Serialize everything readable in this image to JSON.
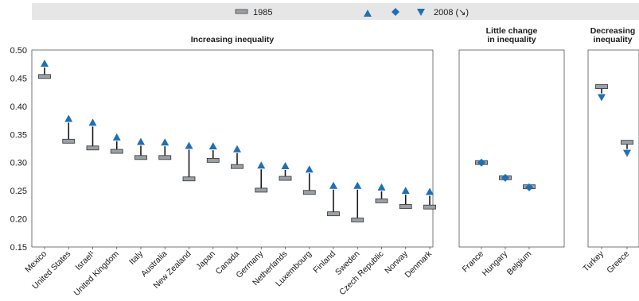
{
  "legend": {
    "label_1985": "1985",
    "label_2008": "2008 (↘)"
  },
  "chart_data": {
    "type": "scatter",
    "ylim": [
      0.15,
      0.5
    ],
    "yticks": [
      "0.50",
      "0.45",
      "0.40",
      "0.35",
      "0.30",
      "0.25",
      "0.20",
      "0.15"
    ],
    "colors": {
      "marker_2008": "#1f6fb5",
      "marker_1985": "#9aa0a6",
      "stem": "#1a1a1a",
      "legend_bg": "#e6e6e6"
    },
    "panels": [
      {
        "title": [
          "Increasing inequality"
        ],
        "categories": [
          "Mexico",
          "United States",
          "Israel¹",
          "United Kingdom",
          "Italy",
          "Australia",
          "New Zealand",
          "Japan",
          "Canada",
          "Germany",
          "Netherlands",
          "Luxembourg",
          "Finland",
          "Sweden",
          "Czech Republic",
          "Norway",
          "Denmark"
        ],
        "v1985": [
          0.453,
          0.338,
          0.326,
          0.32,
          0.309,
          0.309,
          0.271,
          0.304,
          0.293,
          0.251,
          0.272,
          0.247,
          0.209,
          0.198,
          0.232,
          0.222,
          0.221
        ],
        "v2008": [
          0.476,
          0.378,
          0.371,
          0.345,
          0.337,
          0.336,
          0.33,
          0.329,
          0.324,
          0.295,
          0.294,
          0.288,
          0.259,
          0.259,
          0.256,
          0.25,
          0.248
        ]
      },
      {
        "title": [
          "Little change",
          "in inequality"
        ],
        "categories": [
          "France",
          "Hungary",
          "Belgium"
        ],
        "v1985": [
          0.3,
          0.273,
          0.257
        ],
        "v2008": [
          0.3,
          0.273,
          0.256
        ]
      },
      {
        "title": [
          "Decreasing",
          "inequality"
        ],
        "categories": [
          "Turkey",
          "Greece"
        ],
        "v1985": [
          0.435,
          0.336
        ],
        "v2008": [
          0.416,
          0.317
        ]
      }
    ]
  }
}
